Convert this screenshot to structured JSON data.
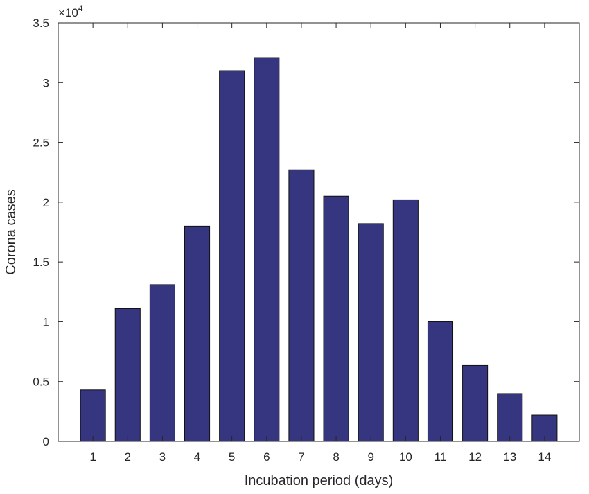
{
  "chart_data": {
    "type": "bar",
    "title": "",
    "xlabel": "Incubation period (days)",
    "ylabel": "Corona cases",
    "y_multiplier": "×10",
    "y_multiplier_exponent": "4",
    "categories": [
      "1",
      "2",
      "3",
      "4",
      "5",
      "6",
      "7",
      "8",
      "9",
      "10",
      "11",
      "12",
      "13",
      "14"
    ],
    "values": [
      4300,
      11100,
      13100,
      18000,
      31000,
      32100,
      22700,
      20500,
      18200,
      20200,
      10000,
      6350,
      4000,
      2200
    ],
    "ylim": [
      0,
      35000
    ],
    "yticks": [
      0,
      5000,
      10000,
      15000,
      20000,
      25000,
      30000,
      35000
    ],
    "ytick_labels": [
      "0",
      "0.5",
      "1",
      "1.5",
      "2",
      "2.5",
      "3",
      "3.5"
    ],
    "grid": false,
    "legend": "none",
    "bar_color": "#363680"
  }
}
